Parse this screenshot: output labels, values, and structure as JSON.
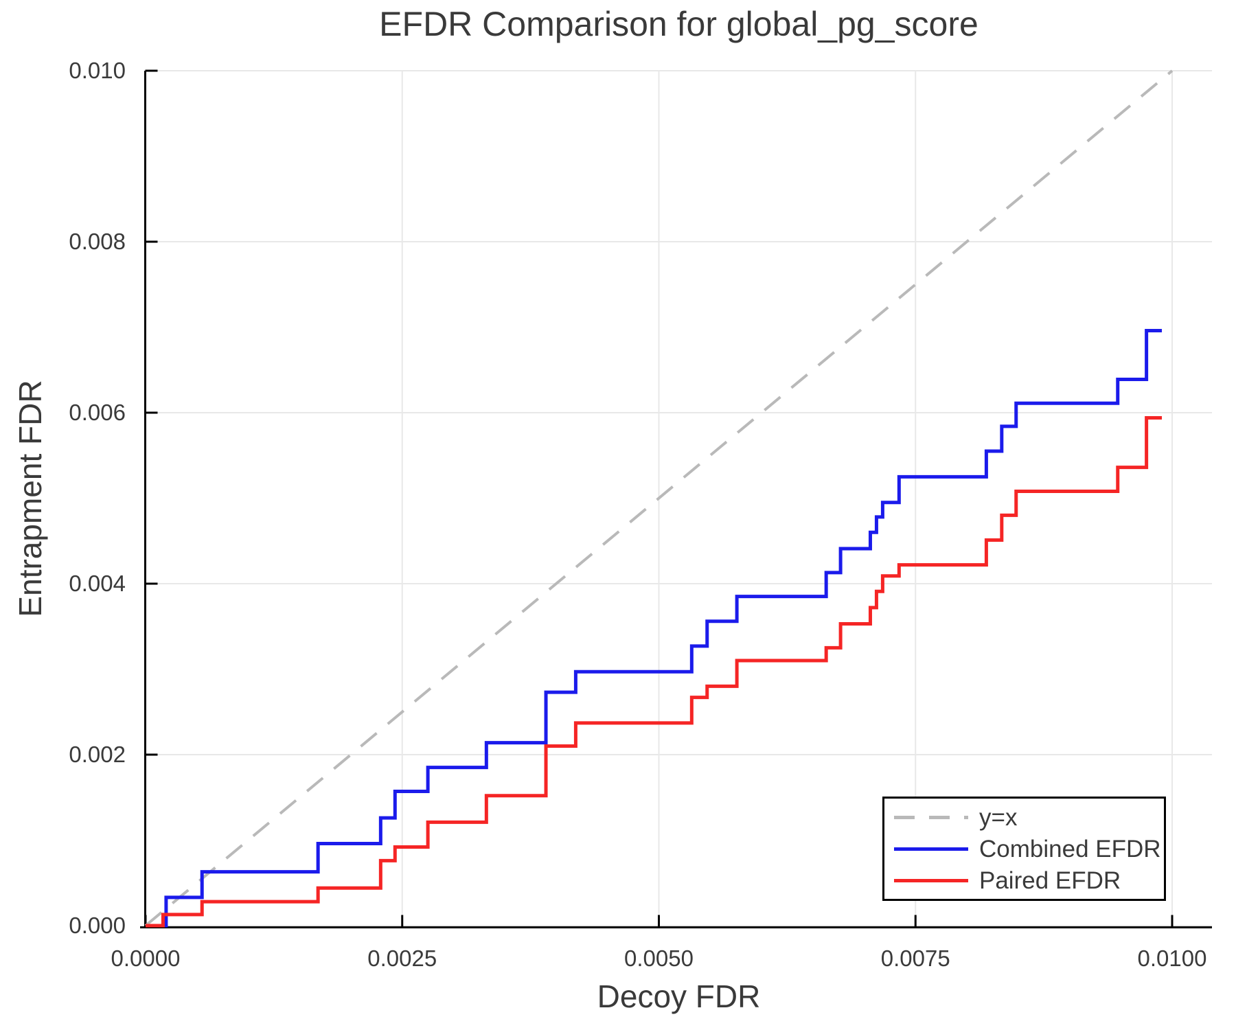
{
  "chart": {
    "title": "EFDR Comparison for global_pg_score",
    "xlabel": "Decoy FDR",
    "ylabel": "Entrapment FDR"
  },
  "chart_data": {
    "type": "line",
    "subtype": "step",
    "title": "EFDR Comparison for global_pg_score",
    "xlabel": "Decoy FDR",
    "ylabel": "Entrapment FDR",
    "xlim": [
      0,
      0.01
    ],
    "ylim": [
      0,
      0.01
    ],
    "grid": true,
    "legend_position": "bottom-right",
    "colors": {
      "combined": "#1b1beb",
      "paired": "#f52525",
      "reference": "#b9b9b9",
      "gridline": "#e8e8e8",
      "spine": "#000000",
      "text": "#3a3a3a"
    },
    "x_ticks": [
      {
        "v": 0.0,
        "label": "0.0000"
      },
      {
        "v": 0.0025,
        "label": "0.0025"
      },
      {
        "v": 0.005,
        "label": "0.0050"
      },
      {
        "v": 0.0075,
        "label": "0.0075"
      },
      {
        "v": 0.01,
        "label": "0.0100"
      }
    ],
    "y_ticks": [
      {
        "v": 0.0,
        "label": "0.000"
      },
      {
        "v": 0.002,
        "label": "0.002"
      },
      {
        "v": 0.004,
        "label": "0.004"
      },
      {
        "v": 0.006,
        "label": "0.006"
      },
      {
        "v": 0.008,
        "label": "0.008"
      },
      {
        "v": 0.01,
        "label": "0.010"
      }
    ],
    "reference_line": {
      "label": "y=x",
      "from": [
        0,
        0
      ],
      "to": [
        0.01,
        0.01
      ],
      "style": "dashed",
      "color": "#b9b9b9"
    },
    "series": [
      {
        "name": "Combined EFDR",
        "color": "#1b1beb",
        "start": [
          0,
          0
        ],
        "end_x": 0.0099,
        "steps": [
          [
            0.0002,
            0.00033
          ],
          [
            0.00055,
            0.00063
          ],
          [
            0.00168,
            0.00096
          ],
          [
            0.00229,
            0.00126
          ],
          [
            0.00243,
            0.00157
          ],
          [
            0.00275,
            0.00185
          ],
          [
            0.00332,
            0.00214
          ],
          [
            0.0039,
            0.00273
          ],
          [
            0.00419,
            0.00297
          ],
          [
            0.00532,
            0.00327
          ],
          [
            0.00547,
            0.00356
          ],
          [
            0.00576,
            0.00385
          ],
          [
            0.00663,
            0.00413
          ],
          [
            0.00677,
            0.00441
          ],
          [
            0.00706,
            0.0046
          ],
          [
            0.00712,
            0.00478
          ],
          [
            0.00718,
            0.00495
          ],
          [
            0.00734,
            0.00525
          ],
          [
            0.00819,
            0.00555
          ],
          [
            0.00834,
            0.00584
          ],
          [
            0.00848,
            0.00611
          ],
          [
            0.00947,
            0.00639
          ],
          [
            0.00975,
            0.00696
          ]
        ]
      },
      {
        "name": "Paired EFDR",
        "color": "#f52525",
        "start": [
          0,
          0
        ],
        "end_x": 0.0099,
        "steps": [
          [
            0.00017,
            0.00013
          ],
          [
            0.00055,
            0.00028
          ],
          [
            0.00168,
            0.00044
          ],
          [
            0.00229,
            0.00076
          ],
          [
            0.00243,
            0.00092
          ],
          [
            0.00275,
            0.00121
          ],
          [
            0.00332,
            0.00152
          ],
          [
            0.0039,
            0.0021
          ],
          [
            0.00419,
            0.00237
          ],
          [
            0.00532,
            0.00267
          ],
          [
            0.00547,
            0.0028
          ],
          [
            0.00576,
            0.0031
          ],
          [
            0.00663,
            0.00325
          ],
          [
            0.00677,
            0.00353
          ],
          [
            0.00706,
            0.00372
          ],
          [
            0.00712,
            0.00391
          ],
          [
            0.00718,
            0.00409
          ],
          [
            0.00734,
            0.00422
          ],
          [
            0.00819,
            0.00451
          ],
          [
            0.00834,
            0.0048
          ],
          [
            0.00848,
            0.00508
          ],
          [
            0.00947,
            0.00536
          ],
          [
            0.00975,
            0.00594
          ]
        ]
      }
    ]
  }
}
